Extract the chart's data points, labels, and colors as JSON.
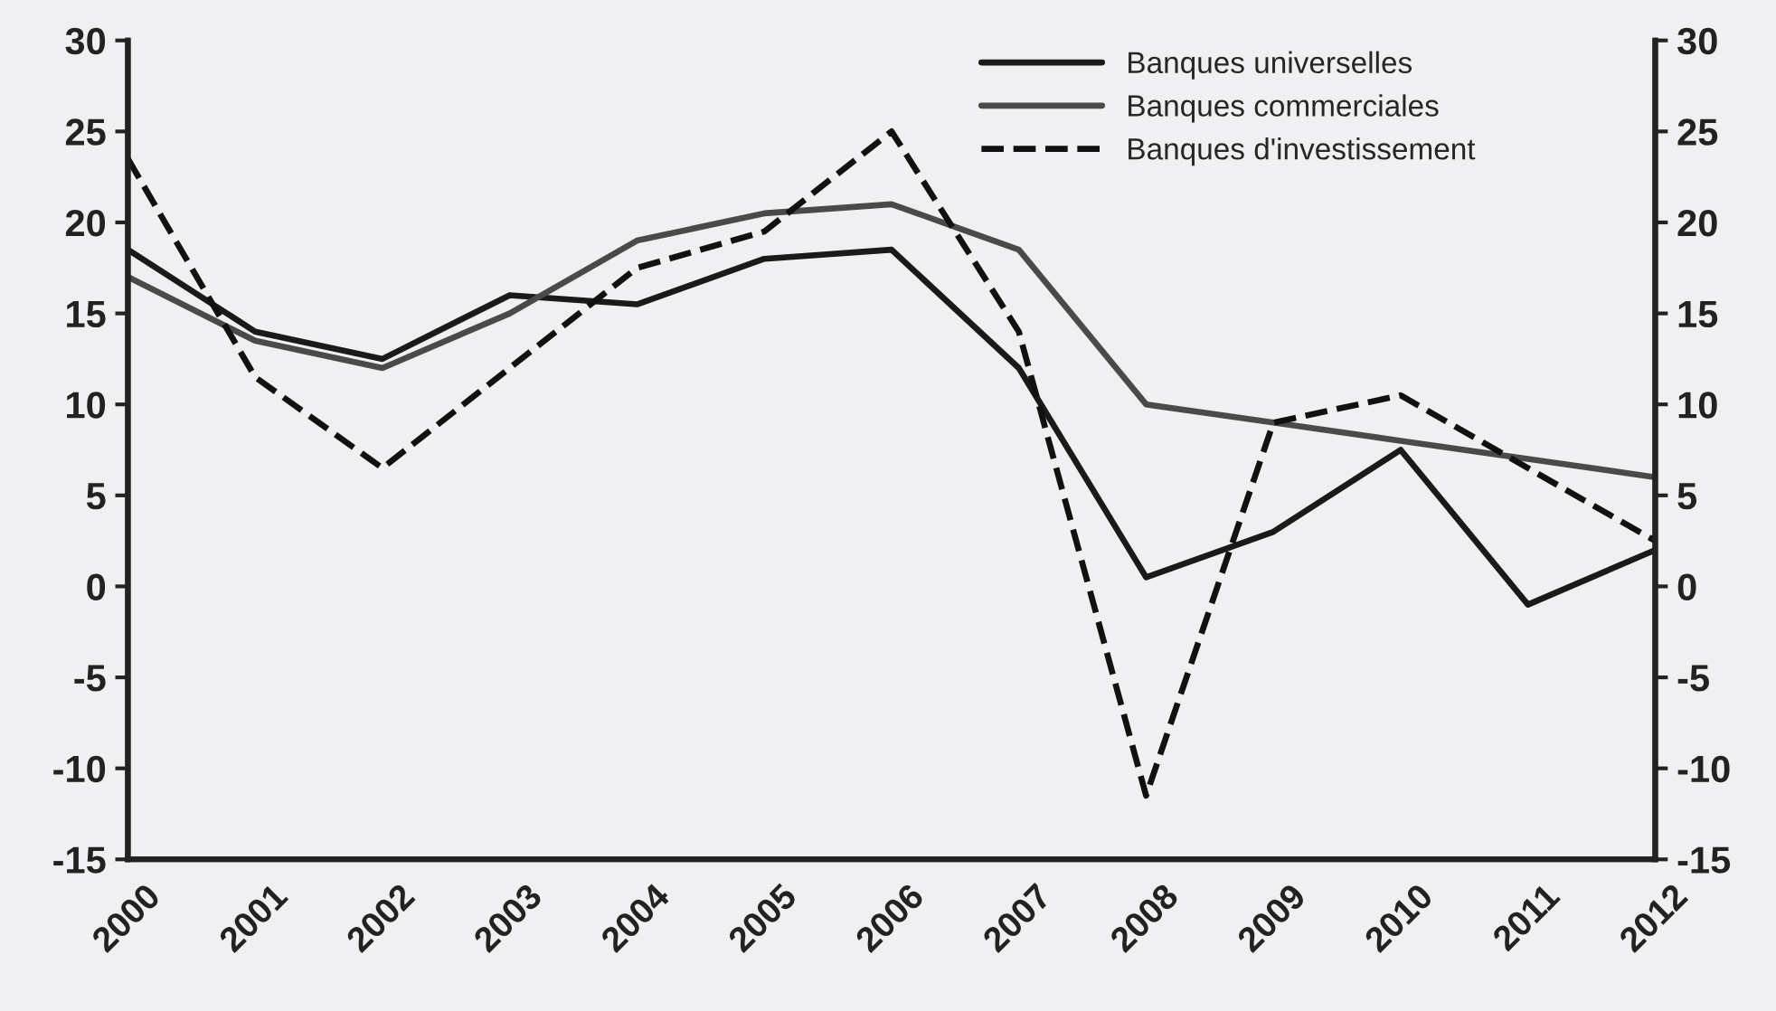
{
  "chart_data": {
    "type": "line",
    "categories": [
      "2000",
      "2001",
      "2002",
      "2003",
      "2004",
      "2005",
      "2006",
      "2007",
      "2008",
      "2009",
      "2010",
      "2011",
      "2012"
    ],
    "series": [
      {
        "name": "Banques universelles",
        "color": "#1a1a1a",
        "line_style": "solid",
        "values": [
          18.5,
          14,
          12.5,
          16,
          15.5,
          18,
          18.5,
          12,
          0.5,
          3,
          7.5,
          -1,
          2
        ]
      },
      {
        "name": "Banques commerciales",
        "color": "#4a4a4a",
        "line_style": "solid",
        "values": [
          17,
          13.5,
          12,
          15,
          19,
          20.5,
          21,
          18.5,
          10,
          9,
          8,
          7,
          6
        ]
      },
      {
        "name": "Banques d'investissement",
        "color": "#111111",
        "line_style": "dashed",
        "values": [
          23.5,
          11.5,
          6.5,
          12,
          17.5,
          19.5,
          25,
          14,
          -11.5,
          9,
          10.5,
          6.5,
          2.5
        ]
      }
    ],
    "ylim": [
      -15,
      30
    ],
    "yticks": [
      -15,
      -10,
      -5,
      0,
      5,
      10,
      15,
      20,
      25,
      30
    ],
    "y2lim": [
      -15,
      30
    ],
    "y2ticks": [
      -15,
      -10,
      -5,
      0,
      5,
      10,
      15,
      20,
      25,
      30
    ],
    "grid": false,
    "legend": "top right",
    "marker": "none"
  }
}
